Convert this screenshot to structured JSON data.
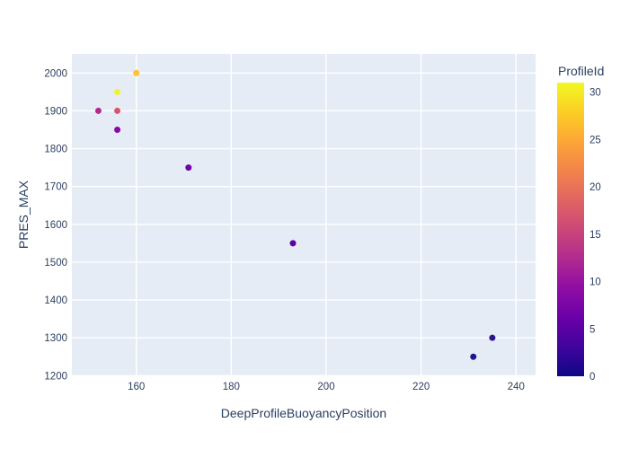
{
  "figure": {
    "background_color": "#ffffff",
    "plot_background_color": "#e5ecf6",
    "gridline_color": "#ffffff",
    "text_color": "#2a3f5f"
  },
  "chart_data": {
    "type": "scatter",
    "title": "",
    "xlabel": "DeepProfileBuoyancyPosition",
    "ylabel": "PRES_MAX",
    "xlim": [
      146.4,
      244.2
    ],
    "ylim": [
      1198,
      2051
    ],
    "x_ticks": [
      160,
      180,
      200,
      220,
      240
    ],
    "y_ticks": [
      1200,
      1300,
      1400,
      1500,
      1600,
      1700,
      1800,
      1900,
      2000
    ],
    "grid": true,
    "legend_position": "right-colorbar",
    "marker_diameter_px": 7,
    "points": [
      {
        "x": 160,
        "y": 2000,
        "profile_id": 26,
        "color": "#fdc328"
      },
      {
        "x": 156,
        "y": 1950,
        "profile_id": 30,
        "color": "#f0f32a"
      },
      {
        "x": 152,
        "y": 1900,
        "profile_id": 12,
        "color": "#b12a90"
      },
      {
        "x": 156,
        "y": 1900,
        "profile_id": 17,
        "color": "#d8536b"
      },
      {
        "x": 156,
        "y": 1850,
        "profile_id": 9,
        "color": "#8b0aa5"
      },
      {
        "x": 171,
        "y": 1750,
        "profile_id": 7,
        "color": "#7104a8"
      },
      {
        "x": 193,
        "y": 1550,
        "profile_id": 5,
        "color": "#5b01a5"
      },
      {
        "x": 235,
        "y": 1300,
        "profile_id": 2,
        "color": "#2b168c"
      },
      {
        "x": 231,
        "y": 1250,
        "profile_id": 1,
        "color": "#27148a"
      }
    ],
    "colorbar": {
      "title": "ProfileId",
      "ticks": [
        0,
        5,
        10,
        15,
        20,
        25,
        30
      ],
      "min": 0,
      "max": 31,
      "colorscale_name": "plasma",
      "gradient_stops": [
        "#0d0887",
        "#41049d",
        "#6a00a8",
        "#8f0da4",
        "#b12a90",
        "#cc4778",
        "#e16462",
        "#f2844b",
        "#fca636",
        "#fcce25",
        "#f0f921"
      ]
    }
  }
}
